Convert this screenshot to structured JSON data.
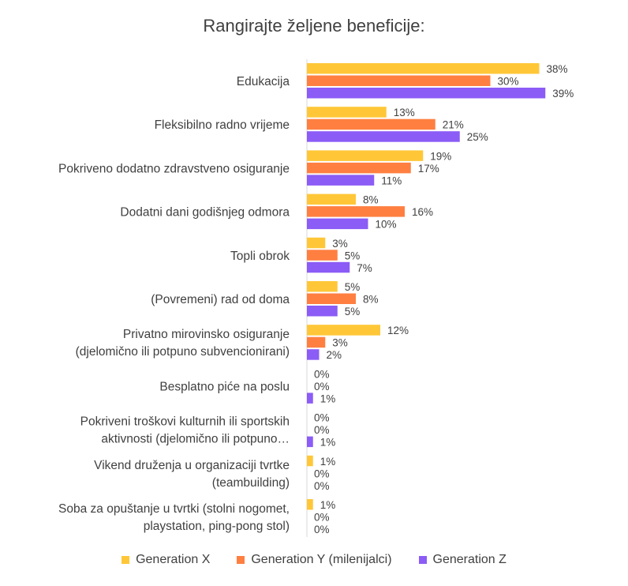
{
  "chart_data": {
    "type": "bar",
    "orientation": "horizontal",
    "title": "Rangirajte željene beneficije:",
    "categories": [
      [
        "Edukacija"
      ],
      [
        "Fleksibilno radno vrijeme"
      ],
      [
        "Pokriveno dodatno zdravstveno osiguranje"
      ],
      [
        "Dodatni dani godišnjeg odmora"
      ],
      [
        "Topli obrok"
      ],
      [
        "(Povremeni) rad od doma"
      ],
      [
        "Privatno mirovinsko osiguranje",
        "(djelomično ili potpuno subvencionirani)"
      ],
      [
        "Besplatno piće na poslu"
      ],
      [
        "Pokriveni troškovi kulturnih ili sportskih",
        "aktivnosti (djelomično ili potpuno…"
      ],
      [
        "Vikend druženja u organizaciji tvrtke",
        "(teambuilding)"
      ],
      [
        "Soba za opuštanje u tvrtki (stolni nogomet,",
        "playstation, ping-pong stol)"
      ]
    ],
    "series": [
      {
        "name": "Generation X",
        "color": "#FFC738",
        "values": [
          38,
          13,
          19,
          8,
          3,
          5,
          12,
          0,
          0,
          1,
          1
        ]
      },
      {
        "name": "Generation Y (milenijalci)",
        "color": "#FF7F41",
        "values": [
          30,
          21,
          17,
          16,
          5,
          8,
          3,
          0,
          0,
          0,
          0
        ]
      },
      {
        "name": "Generation Z",
        "color": "#8B5CF6",
        "values": [
          39,
          25,
          11,
          10,
          7,
          5,
          2,
          1,
          1,
          0,
          0
        ]
      }
    ],
    "value_suffix": "%",
    "xlim": [
      0,
      50
    ],
    "grid": false,
    "legend_position": "bottom"
  }
}
